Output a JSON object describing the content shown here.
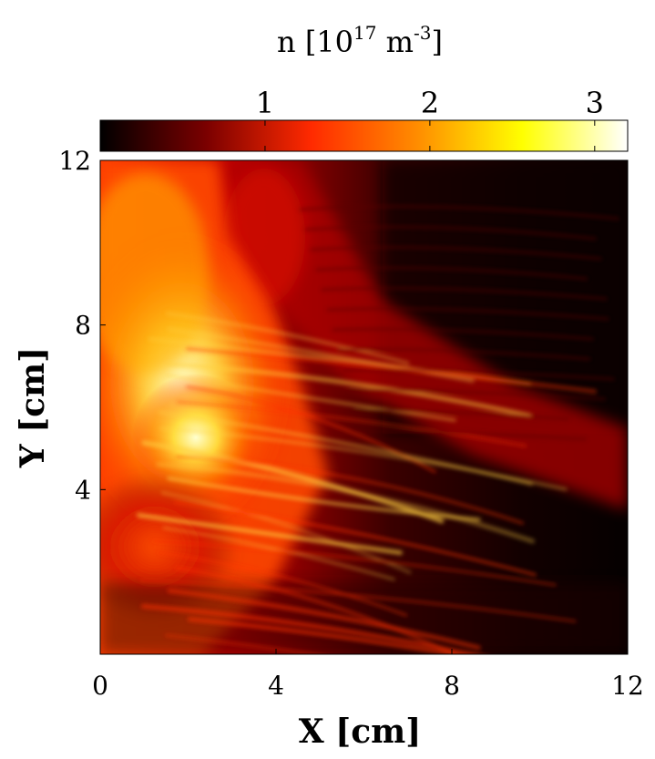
{
  "chart_data": {
    "type": "heatmap",
    "title": "",
    "xlabel": "X [cm]",
    "ylabel": "Y [cm]",
    "xlim": [
      0,
      12
    ],
    "ylim": [
      0,
      12
    ],
    "xticks": [
      0,
      4,
      8,
      12
    ],
    "yticks": [
      4,
      8,
      12
    ],
    "grid": false,
    "colormap": "hot",
    "colorbar": {
      "label_base": "n [10",
      "label_exp": "17",
      "label_mid": " m",
      "label_exp2": "-3",
      "label_end": "]",
      "location": "top",
      "range": [
        0,
        3.2
      ],
      "ticks": [
        1,
        2,
        3
      ],
      "colors": [
        "#000000",
        "#7a0000",
        "#ff2a00",
        "#ff8c00",
        "#ffff00",
        "#ffffff"
      ]
    }
  }
}
